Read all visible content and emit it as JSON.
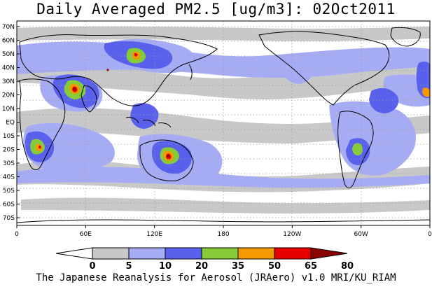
{
  "title": "Daily Averaged PM2.5 [ug/m3]: 02Oct2011",
  "footer": "The Japanese Reanalysis for Aerosol (JRAero) v1.0 MRI/KU_RIAM",
  "map": {
    "lat_labels": [
      "70N",
      "60N",
      "50N",
      "40N",
      "30N",
      "20N",
      "10N",
      "EQ",
      "10S",
      "20S",
      "30S",
      "40S",
      "50S",
      "60S",
      "70S"
    ],
    "lon_labels": [
      "0",
      "60E",
      "120E",
      "180",
      "120W",
      "60W",
      "0"
    ]
  },
  "colorbar": {
    "labels": [
      "0",
      "5",
      "10",
      "20",
      "35",
      "50",
      "65",
      "80"
    ],
    "colors": [
      "#ffffff",
      "#c8c8c8",
      "#a6acf4",
      "#5860ec",
      "#86cc38",
      "#f49a00",
      "#e60000",
      "#8b0000"
    ]
  },
  "colors": {
    "ocean": "#ffffff",
    "land": "#ffffff",
    "coast": "#000000",
    "grid": "#9a9a9a"
  }
}
